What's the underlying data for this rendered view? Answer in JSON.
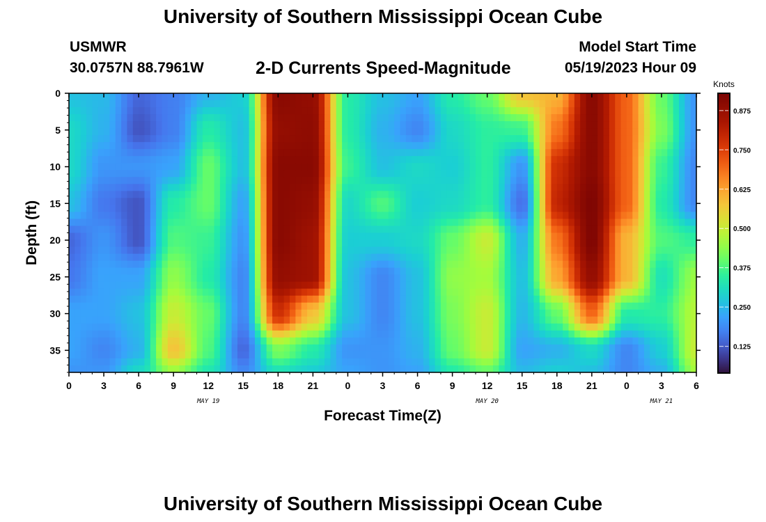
{
  "header": {
    "title": "University of Southern Mississippi Ocean Cube",
    "station": "USMWR",
    "coordinates": "30.0757N  88.7961W",
    "subtitle": "2-D Currents Speed-Magnitude",
    "model_start_label": "Model Start Time",
    "model_start_value": "05/19/2023 Hour 09"
  },
  "footer": {
    "title": "University of Southern Mississippi Ocean Cube"
  },
  "chart_data": {
    "type": "heatmap",
    "title": "2-D Currents Speed-Magnitude",
    "xlabel": "Forecast Time(Z)",
    "ylabel": "Depth (ft)",
    "x_tick_labels": [
      "0",
      "3",
      "6",
      "9",
      "12",
      "15",
      "18",
      "21",
      "0",
      "3",
      "6",
      "9",
      "12",
      "15",
      "18",
      "21",
      "0",
      "3",
      "6"
    ],
    "date_labels": [
      {
        "text": "MAY 19",
        "at_tick": 4
      },
      {
        "text": "MAY 20",
        "at_tick": 12
      },
      {
        "text": "MAY 21",
        "at_tick": 17
      }
    ],
    "x_range_hours": [
      0,
      54
    ],
    "y_tick_labels": [
      "0",
      "5",
      "10",
      "15",
      "20",
      "25",
      "30",
      "35"
    ],
    "y_range_ft": [
      0,
      38
    ],
    "colorbar": {
      "unit": "Knots",
      "min": 0.04,
      "max": 0.93,
      "tick_labels": [
        "0.125",
        "0.250",
        "0.375",
        "0.500",
        "0.625",
        "0.750",
        "0.875"
      ],
      "tick_values": [
        0.125,
        0.25,
        0.375,
        0.5,
        0.625,
        0.75,
        0.875
      ],
      "colormap": "turbo"
    },
    "grid": {
      "hours": [
        0,
        3,
        6,
        9,
        12,
        15,
        18,
        21,
        24,
        27,
        30,
        33,
        36,
        39,
        42,
        45,
        48,
        51,
        54
      ],
      "depths_ft": [
        0,
        5,
        10,
        15,
        20,
        25,
        30,
        35,
        38
      ],
      "speed_knots": [
        [
          0.26,
          0.25,
          0.14,
          0.17,
          0.24,
          0.28,
          0.9,
          0.88,
          0.34,
          0.26,
          0.22,
          0.34,
          0.4,
          0.58,
          0.6,
          0.9,
          0.7,
          0.4,
          0.2
        ],
        [
          0.3,
          0.24,
          0.12,
          0.17,
          0.34,
          0.26,
          0.88,
          0.89,
          0.34,
          0.24,
          0.18,
          0.3,
          0.35,
          0.36,
          0.68,
          0.9,
          0.7,
          0.42,
          0.2
        ],
        [
          0.3,
          0.2,
          0.2,
          0.22,
          0.4,
          0.26,
          0.9,
          0.9,
          0.36,
          0.26,
          0.3,
          0.28,
          0.35,
          0.2,
          0.78,
          0.9,
          0.7,
          0.36,
          0.18
        ],
        [
          0.26,
          0.16,
          0.12,
          0.34,
          0.4,
          0.22,
          0.9,
          0.88,
          0.3,
          0.38,
          0.28,
          0.3,
          0.35,
          0.15,
          0.8,
          0.92,
          0.7,
          0.34,
          0.18
        ],
        [
          0.14,
          0.2,
          0.12,
          0.38,
          0.36,
          0.2,
          0.9,
          0.86,
          0.28,
          0.28,
          0.3,
          0.4,
          0.5,
          0.24,
          0.68,
          0.92,
          0.6,
          0.38,
          0.35
        ],
        [
          0.16,
          0.22,
          0.22,
          0.44,
          0.34,
          0.18,
          0.88,
          0.86,
          0.26,
          0.18,
          0.26,
          0.44,
          0.46,
          0.26,
          0.62,
          0.88,
          0.6,
          0.32,
          0.45
        ],
        [
          0.22,
          0.22,
          0.26,
          0.5,
          0.4,
          0.18,
          0.78,
          0.58,
          0.26,
          0.18,
          0.26,
          0.42,
          0.5,
          0.25,
          0.4,
          0.7,
          0.34,
          0.35,
          0.48
        ],
        [
          0.22,
          0.18,
          0.24,
          0.58,
          0.38,
          0.14,
          0.42,
          0.34,
          0.2,
          0.2,
          0.24,
          0.4,
          0.5,
          0.22,
          0.24,
          0.3,
          0.18,
          0.28,
          0.5
        ],
        [
          0.2,
          0.2,
          0.3,
          0.45,
          0.33,
          0.18,
          0.32,
          0.28,
          0.22,
          0.2,
          0.22,
          0.34,
          0.4,
          0.25,
          0.28,
          0.26,
          0.18,
          0.24,
          0.46
        ]
      ]
    }
  }
}
